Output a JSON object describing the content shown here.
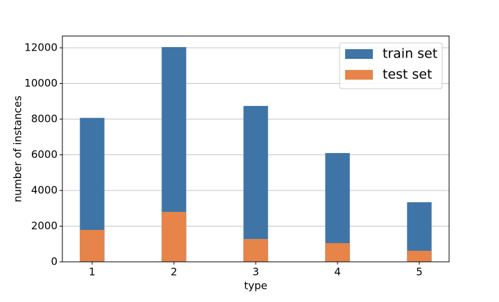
{
  "chart_data": {
    "type": "bar",
    "x": [
      1,
      2,
      3,
      4,
      5
    ],
    "xlabel": "type",
    "ylabel": "number of instances",
    "series": [
      {
        "name": "train set",
        "color": "#3f74a7",
        "values": [
          8070,
          12040,
          8740,
          6100,
          3340
        ]
      },
      {
        "name": "test set",
        "color": "#e6844a",
        "values": [
          1790,
          2800,
          1280,
          1050,
          620
        ]
      }
    ],
    "bar_width": 0.3,
    "xlim": [
      0.636,
      5.364
    ],
    "xticks": [
      1,
      2,
      3,
      4,
      5
    ],
    "ylim": [
      0,
      12660
    ],
    "yticks": [
      0,
      2000,
      4000,
      6000,
      8000,
      10000,
      12000
    ],
    "grid": "y",
    "legend": "upper right"
  }
}
